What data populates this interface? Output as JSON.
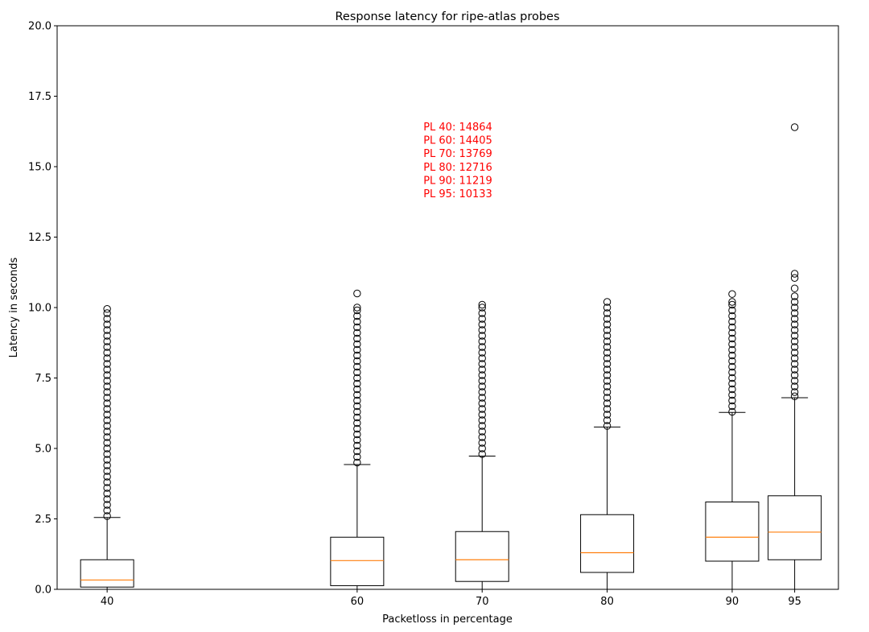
{
  "chart_data": {
    "type": "box",
    "title": "Response latency for ripe-atlas probes",
    "xlabel": "Packetloss in percentage",
    "ylabel": "Latency in seconds",
    "ylim": [
      0,
      20
    ],
    "xlim": [
      36,
      98.5
    ],
    "y_ticks": [
      "0.0",
      "2.5",
      "5.0",
      "7.5",
      "10.0",
      "12.5",
      "15.0",
      "17.5",
      "20.0"
    ],
    "y_tick_values": [
      0,
      2.5,
      5,
      7.5,
      10,
      12.5,
      15,
      17.5,
      20
    ],
    "x_ticks": [
      "40",
      "60",
      "70",
      "80",
      "90",
      "95"
    ],
    "x_tick_values": [
      40,
      60,
      70,
      80,
      90,
      95
    ],
    "annotation_lines": [
      "PL 40: 14864",
      "PL 60: 14405",
      "PL 70: 13769",
      "PL 80: 12716",
      "PL 90: 11219",
      "PL 95: 10133"
    ],
    "colors": {
      "box": "#000000",
      "median": "#ff7f0e",
      "annotation": "#ff0000",
      "outlier": "#000000"
    },
    "boxes": [
      {
        "x": 40,
        "whisker_low": 0.0,
        "q1": 0.08,
        "median": 0.33,
        "q3": 1.05,
        "whisker_high": 2.55,
        "outliers": [
          2.6,
          2.8,
          3.0,
          3.2,
          3.4,
          3.6,
          3.8,
          4.0,
          4.2,
          4.4,
          4.6,
          4.8,
          5.0,
          5.2,
          5.4,
          5.6,
          5.8,
          6.0,
          6.2,
          6.4,
          6.6,
          6.8,
          7.0,
          7.2,
          7.4,
          7.6,
          7.8,
          8.0,
          8.2,
          8.4,
          8.6,
          8.8,
          9.0,
          9.2,
          9.4,
          9.6,
          9.8,
          9.95
        ]
      },
      {
        "x": 60,
        "whisker_low": 0.0,
        "q1": 0.13,
        "median": 1.02,
        "q3": 1.85,
        "whisker_high": 4.43,
        "outliers": [
          4.5,
          4.7,
          4.9,
          5.1,
          5.3,
          5.5,
          5.7,
          5.9,
          6.1,
          6.3,
          6.5,
          6.7,
          6.9,
          7.1,
          7.3,
          7.5,
          7.7,
          7.9,
          8.1,
          8.3,
          8.5,
          8.7,
          8.9,
          9.1,
          9.3,
          9.5,
          9.7,
          9.9,
          10.0,
          10.5
        ]
      },
      {
        "x": 70,
        "whisker_low": 0.0,
        "q1": 0.28,
        "median": 1.05,
        "q3": 2.05,
        "whisker_high": 4.73,
        "outliers": [
          4.8,
          5.0,
          5.2,
          5.4,
          5.6,
          5.8,
          6.0,
          6.2,
          6.4,
          6.6,
          6.8,
          7.0,
          7.2,
          7.4,
          7.6,
          7.8,
          8.0,
          8.2,
          8.4,
          8.6,
          8.8,
          9.0,
          9.2,
          9.4,
          9.6,
          9.8,
          10.0,
          10.1
        ]
      },
      {
        "x": 80,
        "whisker_low": 0.0,
        "q1": 0.6,
        "median": 1.3,
        "q3": 2.65,
        "whisker_high": 5.76,
        "outliers": [
          5.8,
          6.0,
          6.2,
          6.4,
          6.6,
          6.8,
          7.0,
          7.2,
          7.4,
          7.6,
          7.8,
          8.0,
          8.2,
          8.4,
          8.6,
          8.8,
          9.0,
          9.2,
          9.4,
          9.6,
          9.8,
          10.0,
          10.2
        ]
      },
      {
        "x": 90,
        "whisker_low": 0.0,
        "q1": 1.0,
        "median": 1.85,
        "q3": 3.1,
        "whisker_high": 6.28,
        "outliers": [
          6.3,
          6.5,
          6.7,
          6.9,
          7.1,
          7.3,
          7.5,
          7.7,
          7.9,
          8.1,
          8.3,
          8.5,
          8.7,
          8.9,
          9.1,
          9.3,
          9.5,
          9.7,
          9.9,
          10.1,
          10.2,
          10.48
        ]
      },
      {
        "x": 95,
        "whisker_low": 0.0,
        "q1": 1.05,
        "median": 2.03,
        "q3": 3.32,
        "whisker_high": 6.8,
        "outliers": [
          6.85,
          7.0,
          7.2,
          7.4,
          7.6,
          7.8,
          8.0,
          8.2,
          8.4,
          8.6,
          8.8,
          9.0,
          9.2,
          9.4,
          9.6,
          9.8,
          10.0,
          10.2,
          10.4,
          10.68,
          11.05,
          11.2,
          16.4
        ]
      }
    ]
  }
}
